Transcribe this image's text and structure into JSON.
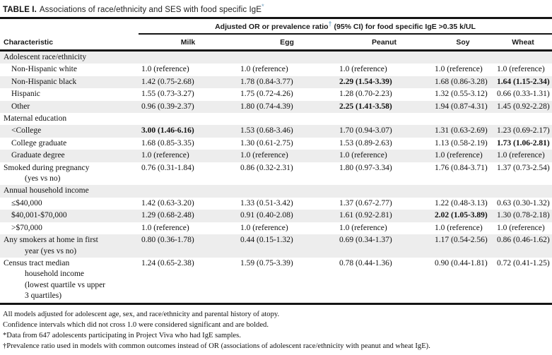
{
  "title": {
    "label": "TABLE I.",
    "text": "Associations of race/ethnicity and SES with food specific IgE",
    "mark": "*"
  },
  "table": {
    "span_header": {
      "pre": "Adjusted OR or prevalence ratio",
      "mark": "†",
      "post": " (95% CI) for food specific IgE >0.35 k/UL"
    },
    "columns": [
      "Characteristic",
      "Milk",
      "Egg",
      "Peanut",
      "Soy",
      "Wheat"
    ],
    "rows": [
      {
        "type": "section",
        "shaded": true,
        "label": [
          "Adolescent race/ethnicity"
        ],
        "cells": []
      },
      {
        "type": "sub",
        "shaded": false,
        "label": [
          "Non-Hispanic white"
        ],
        "cells": [
          {
            "text": "1.0 (reference)",
            "bold": false
          },
          {
            "text": "1.0 (reference)",
            "bold": false
          },
          {
            "text": "1.0 (reference)",
            "bold": false
          },
          {
            "text": "1.0 (reference)",
            "bold": false
          },
          {
            "text": "1.0 (reference)",
            "bold": false
          }
        ]
      },
      {
        "type": "sub",
        "shaded": true,
        "label": [
          "Non-Hispanic black"
        ],
        "cells": [
          {
            "text": "1.42 (0.75-2.68)",
            "bold": false
          },
          {
            "text": "1.78 (0.84-3.77)",
            "bold": false
          },
          {
            "text": "2.29 (1.54-3.39)",
            "bold": true
          },
          {
            "text": "1.68 (0.86-3.28)",
            "bold": false
          },
          {
            "text": "1.64 (1.15-2.34)",
            "bold": true
          }
        ]
      },
      {
        "type": "sub",
        "shaded": false,
        "label": [
          "Hispanic"
        ],
        "cells": [
          {
            "text": "1.55 (0.73-3.27)",
            "bold": false
          },
          {
            "text": "1.75 (0.72-4.26)",
            "bold": false
          },
          {
            "text": "1.28 (0.70-2.23)",
            "bold": false
          },
          {
            "text": "1.32 (0.55-3.12)",
            "bold": false
          },
          {
            "text": "0.66 (0.33-1.31)",
            "bold": false
          }
        ]
      },
      {
        "type": "sub",
        "shaded": true,
        "label": [
          "Other"
        ],
        "cells": [
          {
            "text": "0.96 (0.39-2.37)",
            "bold": false
          },
          {
            "text": "1.80 (0.74-4.39)",
            "bold": false
          },
          {
            "text": "2.25 (1.41-3.58)",
            "bold": true
          },
          {
            "text": "1.94 (0.87-4.31)",
            "bold": false
          },
          {
            "text": "1.45 (0.92-2.28)",
            "bold": false
          }
        ]
      },
      {
        "type": "section",
        "shaded": false,
        "label": [
          "Maternal education"
        ],
        "cells": []
      },
      {
        "type": "sub",
        "shaded": true,
        "label": [
          "<College"
        ],
        "cells": [
          {
            "text": "3.00 (1.46-6.16)",
            "bold": true
          },
          {
            "text": "1.53 (0.68-3.46)",
            "bold": false
          },
          {
            "text": "1.70 (0.94-3.07)",
            "bold": false
          },
          {
            "text": "1.31 (0.63-2.69)",
            "bold": false
          },
          {
            "text": "1.23 (0.69-2.17)",
            "bold": false
          }
        ]
      },
      {
        "type": "sub",
        "shaded": false,
        "label": [
          "College graduate"
        ],
        "cells": [
          {
            "text": "1.68 (0.85-3.35)",
            "bold": false
          },
          {
            "text": "1.30 (0.61-2.75)",
            "bold": false
          },
          {
            "text": "1.53 (0.89-2.63)",
            "bold": false
          },
          {
            "text": "1.13 (0.58-2.19)",
            "bold": false
          },
          {
            "text": "1.73 (1.06-2.81)",
            "bold": true
          }
        ]
      },
      {
        "type": "sub",
        "shaded": true,
        "label": [
          "Graduate degree"
        ],
        "cells": [
          {
            "text": "1.0 (reference)",
            "bold": false
          },
          {
            "text": "1.0 (reference)",
            "bold": false
          },
          {
            "text": "1.0 (reference)",
            "bold": false
          },
          {
            "text": "1.0 (reference)",
            "bold": false
          },
          {
            "text": "1.0 (reference)",
            "bold": false
          }
        ]
      },
      {
        "type": "flush",
        "shaded": false,
        "label": [
          "Smoked during pregnancy",
          "(yes vs no)"
        ],
        "cells": [
          {
            "text": "0.76 (0.31-1.84)",
            "bold": false
          },
          {
            "text": "0.86 (0.32-2.31)",
            "bold": false
          },
          {
            "text": "1.80 (0.97-3.34)",
            "bold": false
          },
          {
            "text": "1.76 (0.84-3.71)",
            "bold": false
          },
          {
            "text": "1.37 (0.73-2.54)",
            "bold": false
          }
        ]
      },
      {
        "type": "section",
        "shaded": true,
        "label": [
          "Annual household income"
        ],
        "cells": []
      },
      {
        "type": "sub",
        "shaded": false,
        "label": [
          "≤$40,000"
        ],
        "cells": [
          {
            "text": "1.42 (0.63-3.20)",
            "bold": false
          },
          {
            "text": "1.33 (0.51-3.42)",
            "bold": false
          },
          {
            "text": "1.37 (0.67-2.77)",
            "bold": false
          },
          {
            "text": "1.22 (0.48-3.13)",
            "bold": false
          },
          {
            "text": "0.63 (0.30-1.32)",
            "bold": false
          }
        ]
      },
      {
        "type": "sub",
        "shaded": true,
        "label": [
          "$40,001-$70,000"
        ],
        "cells": [
          {
            "text": "1.29 (0.68-2.48)",
            "bold": false
          },
          {
            "text": "0.91 (0.40-2.08)",
            "bold": false
          },
          {
            "text": "1.61 (0.92-2.81)",
            "bold": false
          },
          {
            "text": "2.02 (1.05-3.89)",
            "bold": true
          },
          {
            "text": "1.30 (0.78-2.18)",
            "bold": false
          }
        ]
      },
      {
        "type": "sub",
        "shaded": false,
        "label": [
          ">$70,000"
        ],
        "cells": [
          {
            "text": "1.0 (reference)",
            "bold": false
          },
          {
            "text": "1.0 (reference)",
            "bold": false
          },
          {
            "text": "1.0 (reference)",
            "bold": false
          },
          {
            "text": "1.0 (reference)",
            "bold": false
          },
          {
            "text": "1.0 (reference)",
            "bold": false
          }
        ]
      },
      {
        "type": "flush",
        "shaded": true,
        "label": [
          "Any smokers at home in first",
          "year (yes vs no)"
        ],
        "cells": [
          {
            "text": "0.80 (0.36-1.78)",
            "bold": false
          },
          {
            "text": "0.44 (0.15-1.32)",
            "bold": false
          },
          {
            "text": "0.69 (0.34-1.37)",
            "bold": false
          },
          {
            "text": "1.17 (0.54-2.56)",
            "bold": false
          },
          {
            "text": "0.86 (0.46-1.62)",
            "bold": false
          }
        ]
      },
      {
        "type": "flush",
        "shaded": false,
        "label": [
          "Census tract median",
          "household income",
          "(lowest quartile vs upper",
          "3 quartiles)"
        ],
        "cells": [
          {
            "text": "1.24 (0.65-2.38)",
            "bold": false
          },
          {
            "text": "1.59 (0.75-3.39)",
            "bold": false
          },
          {
            "text": "0.78 (0.44-1.36)",
            "bold": false
          },
          {
            "text": "0.90 (0.44-1.81)",
            "bold": false
          },
          {
            "text": "0.72 (0.41-1.25)",
            "bold": false
          }
        ]
      }
    ]
  },
  "footnotes": [
    "All models adjusted for adolescent age, sex, and race/ethnicity and parental history of atopy.",
    "Confidence intervals which did not cross 1.0 were considered significant and are bolded.",
    "*Data from 647 adolescents participating in Project Viva who had IgE samples.",
    "†Prevalence ratio used in models with common outcomes instead of OR (associations of adolescent race/ethnicity with peanut and wheat IgE)."
  ],
  "colors": {
    "shaded_row": "#ededed",
    "rule": "#151515",
    "footnote_mark": "#6d9fc0"
  }
}
